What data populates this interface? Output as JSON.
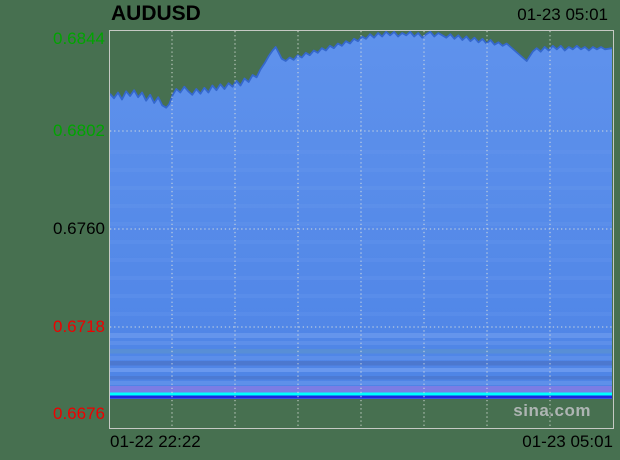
{
  "chart": {
    "title": "AUDUSD",
    "top_right_time": "01-23 05:01",
    "watermark": "sina.com",
    "x_axis": {
      "left_label": "01-22 22:22",
      "right_label": "01-23 05:01"
    }
  },
  "palette": {
    "background": "#477050",
    "plot_border": "#c6c9c4",
    "grid_dots": "#dfe3dd",
    "area_fill_top": "#5f92ec",
    "area_fill_bottom": "#4e84e6",
    "line": "#3568cc",
    "band_light": "#6d9bee",
    "band_teal": "#5b90d0",
    "band_dark": "#4a70c0",
    "band_purple": "#7b7de4",
    "ref_line_cyan": "#00ffff",
    "ref_line_blue": "#2026df",
    "title_color": "#000000",
    "tick_green": "#00a400",
    "tick_black": "#000000",
    "tick_red": "#ee0000",
    "watermark_color": "#aeb5b3"
  },
  "chart_data": {
    "type": "area",
    "title": "AUDUSD",
    "xlabel": "",
    "ylabel": "",
    "x_range_labels": [
      "01-22 22:22",
      "01-23 05:01"
    ],
    "ylim": [
      0.6676,
      0.6844
    ],
    "grid": true,
    "legend": "none",
    "y_ticks": [
      {
        "label": "0.6844",
        "value": 0.6844,
        "color": "#00a400"
      },
      {
        "label": "0.6802",
        "value": 0.6802,
        "color": "#00a400"
      },
      {
        "label": "0.6760",
        "value": 0.676,
        "color": "#000000"
      },
      {
        "label": "0.6718",
        "value": 0.6718,
        "color": "#ee0000"
      },
      {
        "label": "0.6676",
        "value": 0.6676,
        "color": "#ee0000"
      }
    ],
    "ref_line": {
      "value": 0.6689,
      "color": "#00ffff",
      "under_color": "#2026df"
    },
    "series": [
      {
        "name": "AUDUSD",
        "points": [
          [
            0.0,
            0.6818
          ],
          [
            0.008,
            0.6816
          ],
          [
            0.016,
            0.68185
          ],
          [
            0.024,
            0.68155
          ],
          [
            0.032,
            0.6819
          ],
          [
            0.04,
            0.6817
          ],
          [
            0.048,
            0.68195
          ],
          [
            0.056,
            0.68165
          ],
          [
            0.064,
            0.68185
          ],
          [
            0.072,
            0.6815
          ],
          [
            0.08,
            0.68175
          ],
          [
            0.088,
            0.6814
          ],
          [
            0.096,
            0.68165
          ],
          [
            0.104,
            0.6813
          ],
          [
            0.112,
            0.6812
          ],
          [
            0.118,
            0.68135
          ],
          [
            0.125,
            0.68175
          ],
          [
            0.132,
            0.682
          ],
          [
            0.14,
            0.68185
          ],
          [
            0.148,
            0.6821
          ],
          [
            0.156,
            0.6819
          ],
          [
            0.164,
            0.68175
          ],
          [
            0.172,
            0.682
          ],
          [
            0.18,
            0.6818
          ],
          [
            0.188,
            0.68205
          ],
          [
            0.196,
            0.68185
          ],
          [
            0.204,
            0.68215
          ],
          [
            0.212,
            0.68195
          ],
          [
            0.22,
            0.6822
          ],
          [
            0.228,
            0.682
          ],
          [
            0.236,
            0.68225
          ],
          [
            0.244,
            0.6821
          ],
          [
            0.252,
            0.68235
          ],
          [
            0.26,
            0.68215
          ],
          [
            0.268,
            0.68245
          ],
          [
            0.276,
            0.6823
          ],
          [
            0.284,
            0.6826
          ],
          [
            0.292,
            0.6825
          ],
          [
            0.3,
            0.68285
          ],
          [
            0.308,
            0.6831
          ],
          [
            0.316,
            0.6834
          ],
          [
            0.324,
            0.68365
          ],
          [
            0.33,
            0.6838
          ],
          [
            0.336,
            0.68355
          ],
          [
            0.342,
            0.6833
          ],
          [
            0.35,
            0.6832
          ],
          [
            0.358,
            0.68335
          ],
          [
            0.366,
            0.68325
          ],
          [
            0.374,
            0.68345
          ],
          [
            0.382,
            0.68335
          ],
          [
            0.39,
            0.68355
          ],
          [
            0.398,
            0.68345
          ],
          [
            0.406,
            0.68365
          ],
          [
            0.414,
            0.68355
          ],
          [
            0.422,
            0.68375
          ],
          [
            0.43,
            0.68365
          ],
          [
            0.438,
            0.68385
          ],
          [
            0.446,
            0.68375
          ],
          [
            0.454,
            0.68395
          ],
          [
            0.462,
            0.68385
          ],
          [
            0.47,
            0.68405
          ],
          [
            0.478,
            0.68395
          ],
          [
            0.486,
            0.68415
          ],
          [
            0.494,
            0.68405
          ],
          [
            0.502,
            0.68425
          ],
          [
            0.51,
            0.68415
          ],
          [
            0.518,
            0.68435
          ],
          [
            0.526,
            0.6842
          ],
          [
            0.534,
            0.6844
          ],
          [
            0.542,
            0.68425
          ],
          [
            0.55,
            0.68445
          ],
          [
            0.558,
            0.6843
          ],
          [
            0.566,
            0.68445
          ],
          [
            0.574,
            0.68425
          ],
          [
            0.582,
            0.6844
          ],
          [
            0.59,
            0.6843
          ],
          [
            0.598,
            0.68445
          ],
          [
            0.606,
            0.68425
          ],
          [
            0.614,
            0.6844
          ],
          [
            0.622,
            0.6842
          ],
          [
            0.63,
            0.68435
          ],
          [
            0.638,
            0.68445
          ],
          [
            0.646,
            0.68425
          ],
          [
            0.654,
            0.6844
          ],
          [
            0.662,
            0.6843
          ],
          [
            0.67,
            0.6842
          ],
          [
            0.678,
            0.68435
          ],
          [
            0.686,
            0.68415
          ],
          [
            0.694,
            0.6843
          ],
          [
            0.702,
            0.6841
          ],
          [
            0.71,
            0.68425
          ],
          [
            0.718,
            0.68405
          ],
          [
            0.726,
            0.6842
          ],
          [
            0.734,
            0.684
          ],
          [
            0.742,
            0.68415
          ],
          [
            0.75,
            0.68395
          ],
          [
            0.758,
            0.6841
          ],
          [
            0.766,
            0.6839
          ],
          [
            0.774,
            0.684
          ],
          [
            0.782,
            0.68385
          ],
          [
            0.79,
            0.68395
          ],
          [
            0.798,
            0.6838
          ],
          [
            0.806,
            0.68365
          ],
          [
            0.814,
            0.6835
          ],
          [
            0.822,
            0.68335
          ],
          [
            0.83,
            0.6832
          ],
          [
            0.836,
            0.6834
          ],
          [
            0.842,
            0.6836
          ],
          [
            0.85,
            0.68375
          ],
          [
            0.858,
            0.6836
          ],
          [
            0.866,
            0.6838
          ],
          [
            0.874,
            0.68365
          ],
          [
            0.882,
            0.68385
          ],
          [
            0.89,
            0.6837
          ],
          [
            0.898,
            0.68385
          ],
          [
            0.906,
            0.68365
          ],
          [
            0.914,
            0.6838
          ],
          [
            0.922,
            0.6837
          ],
          [
            0.93,
            0.68385
          ],
          [
            0.938,
            0.6837
          ],
          [
            0.946,
            0.6838
          ],
          [
            0.954,
            0.68365
          ],
          [
            0.962,
            0.6838
          ],
          [
            0.97,
            0.6837
          ],
          [
            0.978,
            0.6838
          ],
          [
            0.986,
            0.6837
          ],
          [
            1.0,
            0.68375
          ]
        ]
      }
    ]
  }
}
